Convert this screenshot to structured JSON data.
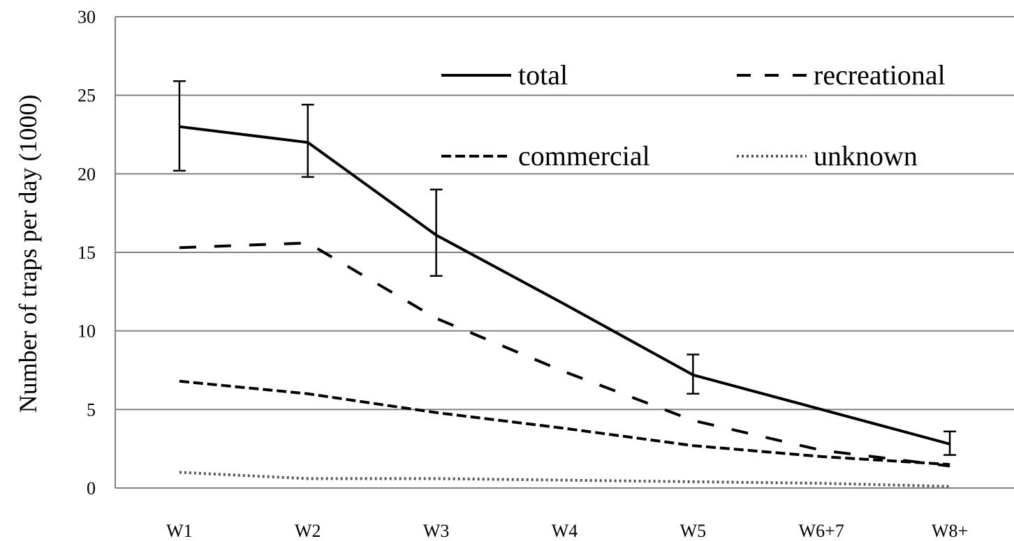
{
  "chart_data": {
    "type": "line",
    "title": "",
    "xlabel": "",
    "ylabel": "Number of  traps per day (1000)",
    "categories": [
      "W1",
      "W2",
      "W3",
      "W4",
      "W5",
      "W6+7",
      "W8+"
    ],
    "ylim": [
      0,
      30
    ],
    "yticks": [
      0,
      5,
      10,
      15,
      20,
      25,
      30
    ],
    "grid": "horizontal",
    "legend_placement": "top-right",
    "series": [
      {
        "name": "total",
        "style": "solid",
        "values": [
          23.0,
          22.0,
          16.1,
          11.7,
          7.2,
          5.0,
          2.8
        ],
        "error_bars": [
          {
            "category": "W1",
            "low": 20.2,
            "high": 25.9
          },
          {
            "category": "W2",
            "low": 19.8,
            "high": 24.4
          },
          {
            "category": "W3",
            "low": 13.5,
            "high": 19.0
          },
          {
            "category": "W5",
            "low": 6.0,
            "high": 8.5
          },
          {
            "category": "W8+",
            "low": 2.1,
            "high": 3.6
          }
        ]
      },
      {
        "name": "recreational",
        "style": "long-dash",
        "values": [
          15.3,
          15.6,
          10.8,
          7.4,
          4.3,
          2.4,
          1.4
        ]
      },
      {
        "name": "commercial",
        "style": "short-dash",
        "values": [
          6.8,
          6.0,
          4.8,
          3.8,
          2.7,
          2.0,
          1.5
        ]
      },
      {
        "name": "unknown",
        "style": "dotted",
        "values": [
          1.0,
          0.6,
          0.6,
          0.5,
          0.4,
          0.3,
          0.1
        ]
      }
    ],
    "line_color": "#000000",
    "grid_color": "#808080"
  }
}
